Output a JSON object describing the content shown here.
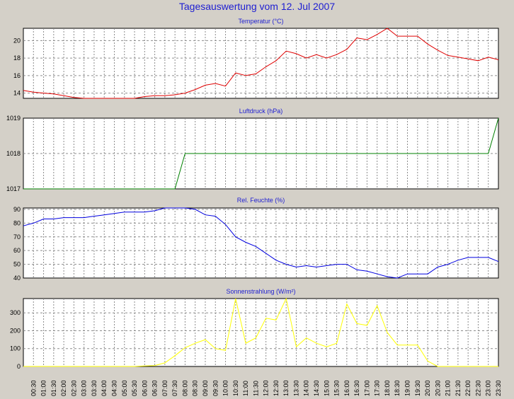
{
  "page_title": "Tagesauswertung vom 12. Jul 2007",
  "colors": {
    "background": "#d4d0c8",
    "plot": "#ffffff",
    "title": "#1e1ed2",
    "temperature": "#e00000",
    "pressure": "#008000",
    "humidity": "#0000e0",
    "solar": "#ffff00"
  },
  "chart_data": [
    {
      "type": "line",
      "title": "Temperatur (°C)",
      "yticks": [
        14,
        16,
        18,
        20
      ],
      "ylim": [
        13.4,
        21.4
      ],
      "grid": true,
      "x": [
        "00:00",
        "00:30",
        "01:00",
        "01:30",
        "02:00",
        "02:30",
        "03:00",
        "03:30",
        "04:00",
        "04:30",
        "05:00",
        "05:30",
        "06:00",
        "06:30",
        "07:00",
        "07:30",
        "08:00",
        "08:30",
        "09:00",
        "09:30",
        "10:00",
        "10:30",
        "11:00",
        "11:30",
        "12:00",
        "12:30",
        "13:00",
        "13:30",
        "14:00",
        "14:30",
        "15:00",
        "15:30",
        "16:00",
        "16:30",
        "17:00",
        "17:30",
        "18:00",
        "18:30",
        "19:00",
        "19:30",
        "20:00",
        "20:30",
        "21:00",
        "21:30",
        "22:00",
        "22:30",
        "23:00",
        "23:30"
      ],
      "series": [
        {
          "name": "",
          "color": "#e00000",
          "values": [
            14.3,
            14.1,
            14.0,
            13.9,
            13.7,
            13.5,
            13.4,
            13.4,
            13.4,
            13.4,
            13.4,
            13.4,
            13.6,
            13.7,
            13.7,
            13.8,
            14.0,
            14.4,
            14.9,
            15.1,
            14.8,
            16.3,
            16.0,
            16.2,
            17.0,
            17.7,
            18.8,
            18.5,
            18.0,
            18.4,
            18.0,
            18.4,
            19.0,
            20.3,
            20.1,
            20.7,
            21.4,
            20.5,
            20.5,
            20.5,
            19.6,
            18.9,
            18.3,
            18.1,
            17.9,
            17.7,
            18.1,
            17.8
          ]
        }
      ]
    },
    {
      "type": "line",
      "title": "Luftdruck (hPa)",
      "yticks": [
        1017,
        1018,
        1019
      ],
      "ylim": [
        1017,
        1019
      ],
      "grid": true,
      "x": [
        "00:00",
        "00:30",
        "01:00",
        "01:30",
        "02:00",
        "02:30",
        "03:00",
        "03:30",
        "04:00",
        "04:30",
        "05:00",
        "05:30",
        "06:00",
        "06:30",
        "07:00",
        "07:30",
        "08:00",
        "08:30",
        "09:00",
        "09:30",
        "10:00",
        "10:30",
        "11:00",
        "11:30",
        "12:00",
        "12:30",
        "13:00",
        "13:30",
        "14:00",
        "14:30",
        "15:00",
        "15:30",
        "16:00",
        "16:30",
        "17:00",
        "17:30",
        "18:00",
        "18:30",
        "19:00",
        "19:30",
        "20:00",
        "20:30",
        "21:00",
        "21:30",
        "22:00",
        "22:30",
        "23:00",
        "23:30"
      ],
      "series": [
        {
          "name": "",
          "color": "#008000",
          "values": [
            1017,
            1017,
            1017,
            1017,
            1017,
            1017,
            1017,
            1017,
            1017,
            1017,
            1017,
            1017,
            1017,
            1017,
            1017,
            1017,
            1018,
            1018,
            1018,
            1018,
            1018,
            1018,
            1018,
            1018,
            1018,
            1018,
            1018,
            1018,
            1018,
            1018,
            1018,
            1018,
            1018,
            1018,
            1018,
            1018,
            1018,
            1018,
            1018,
            1018,
            1018,
            1018,
            1018,
            1018,
            1018,
            1018,
            1018,
            1019
          ]
        }
      ]
    },
    {
      "type": "line",
      "title": "Rel. Feuchte (%)",
      "yticks": [
        40,
        50,
        60,
        70,
        80,
        90
      ],
      "ylim": [
        40,
        91
      ],
      "grid": true,
      "x": [
        "00:00",
        "00:30",
        "01:00",
        "01:30",
        "02:00",
        "02:30",
        "03:00",
        "03:30",
        "04:00",
        "04:30",
        "05:00",
        "05:30",
        "06:00",
        "06:30",
        "07:00",
        "07:30",
        "08:00",
        "08:30",
        "09:00",
        "09:30",
        "10:00",
        "10:30",
        "11:00",
        "11:30",
        "12:00",
        "12:30",
        "13:00",
        "13:30",
        "14:00",
        "14:30",
        "15:00",
        "15:30",
        "16:00",
        "16:30",
        "17:00",
        "17:30",
        "18:00",
        "18:30",
        "19:00",
        "19:30",
        "20:00",
        "20:30",
        "21:00",
        "21:30",
        "22:00",
        "22:30",
        "23:00",
        "23:30"
      ],
      "series": [
        {
          "name": "",
          "color": "#0000e0",
          "values": [
            78,
            80,
            83,
            83,
            84,
            84,
            84,
            85,
            86,
            87,
            88,
            88,
            88,
            89,
            91,
            92,
            92,
            90,
            86,
            85,
            79,
            70,
            66,
            63,
            58,
            53,
            50,
            48,
            49,
            48,
            49,
            50,
            50,
            46,
            45,
            43,
            41,
            40,
            43,
            43,
            43,
            48,
            50,
            53,
            55,
            55,
            55,
            52
          ]
        }
      ]
    },
    {
      "type": "line",
      "title": "Sonnenstrahlung (W/m²)",
      "yticks": [
        0,
        100,
        200,
        300
      ],
      "ylim": [
        0,
        380
      ],
      "grid": true,
      "x": [
        "00:00",
        "00:30",
        "01:00",
        "01:30",
        "02:00",
        "02:30",
        "03:00",
        "03:30",
        "04:00",
        "04:30",
        "05:00",
        "05:30",
        "06:00",
        "06:30",
        "07:00",
        "07:30",
        "08:00",
        "08:30",
        "09:00",
        "09:30",
        "10:00",
        "10:30",
        "11:00",
        "11:30",
        "12:00",
        "12:30",
        "13:00",
        "13:30",
        "14:00",
        "14:30",
        "15:00",
        "15:30",
        "16:00",
        "16:30",
        "17:00",
        "17:30",
        "18:00",
        "18:30",
        "19:00",
        "19:30",
        "20:00",
        "20:30",
        "21:00",
        "21:30",
        "22:00",
        "22:30",
        "23:00",
        "23:30"
      ],
      "series": [
        {
          "name": "",
          "color": "#ffff00",
          "values": [
            0,
            0,
            0,
            0,
            0,
            0,
            0,
            0,
            0,
            0,
            0,
            0,
            3,
            5,
            20,
            60,
            105,
            130,
            150,
            100,
            90,
            380,
            130,
            160,
            270,
            260,
            380,
            110,
            160,
            130,
            110,
            130,
            350,
            240,
            230,
            340,
            190,
            120,
            120,
            120,
            30,
            0,
            0,
            0,
            0,
            0,
            0,
            0
          ]
        }
      ]
    }
  ],
  "x_tick_labels": [
    "00:30",
    "01:00",
    "01:30",
    "02:00",
    "02:30",
    "03:00",
    "03:30",
    "04:00",
    "04:30",
    "05:00",
    "05:30",
    "06:00",
    "06:30",
    "07:00",
    "07:30",
    "08:00",
    "08:30",
    "09:00",
    "09:30",
    "10:00",
    "10:30",
    "11:00",
    "11:30",
    "12:00",
    "12:30",
    "13:00",
    "13:30",
    "14:00",
    "14:30",
    "15:00",
    "15:30",
    "16:00",
    "16:30",
    "17:00",
    "17:30",
    "18:00",
    "18:30",
    "19:00",
    "19:30",
    "20:00",
    "20:30",
    "21:00",
    "21:30",
    "22:00",
    "22:30",
    "23:00",
    "23:30"
  ]
}
